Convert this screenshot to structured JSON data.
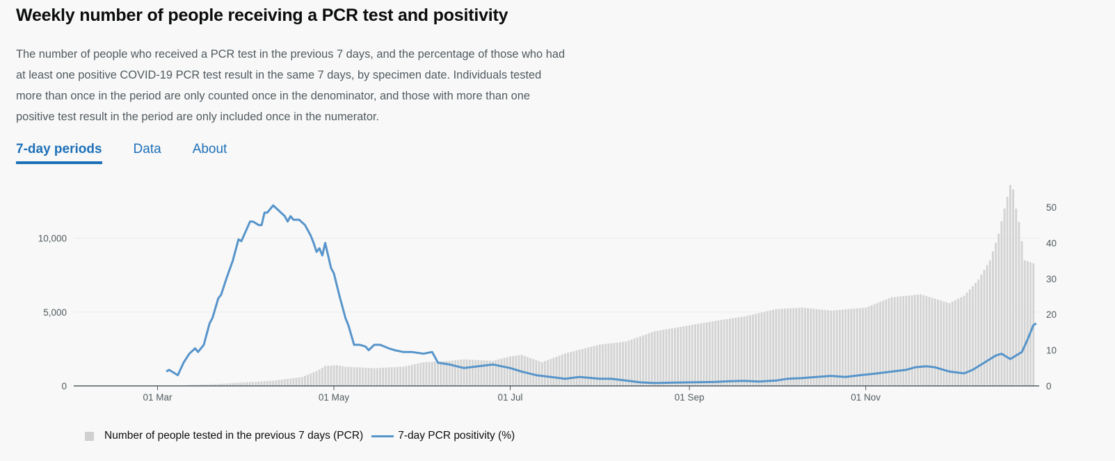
{
  "header": {
    "title": "Weekly number of people receiving a PCR test and positivity",
    "description": "The number of people who received a PCR test in the previous 7 days, and the percentage of those who had at least one positive COVID-19 PCR test result in the same 7 days, by specimen date. Individuals tested more than once in the period are only counted once in the denominator, and those with more than one positive test result in the period are only included once in the numerator."
  },
  "tabs": [
    {
      "label": "7-day periods",
      "active": true
    },
    {
      "label": "Data",
      "active": false
    },
    {
      "label": "About",
      "active": false
    }
  ],
  "colors": {
    "bars": "#d3d3d3",
    "line": "#5694ca",
    "tab": "#1d70b8"
  },
  "chart_data": {
    "type": "bar",
    "x_range": [
      "2020-02-01",
      "2020-12-31"
    ],
    "x_ticks": [
      {
        "date": "2020-03-01",
        "label": "01 Mar"
      },
      {
        "date": "2020-05-01",
        "label": "01 May"
      },
      {
        "date": "2020-07-01",
        "label": "01 Jul"
      },
      {
        "date": "2020-09-01",
        "label": "01 Sep"
      },
      {
        "date": "2020-11-01",
        "label": "01 Nov"
      }
    ],
    "y_left": {
      "range": [
        0,
        13650
      ],
      "ticks": [
        0,
        5000,
        10000
      ],
      "tick_labels": [
        "0",
        "5,000",
        "10,000"
      ]
    },
    "y_right": {
      "range": [
        0,
        50
      ],
      "ticks": [
        0,
        10,
        20,
        30,
        40,
        50
      ],
      "tick_labels": [
        "0",
        "10",
        "20",
        "30",
        "40",
        "50"
      ]
    },
    "grid": true,
    "legend_position": "bottom-left",
    "series": [
      {
        "name": "Number of people tested in the previous 7 days (PCR)",
        "type": "bar",
        "axis": "left",
        "points": [
          [
            "2020-03-10",
            50
          ],
          [
            "2020-03-20",
            110
          ],
          [
            "2020-04-01",
            250
          ],
          [
            "2020-04-10",
            350
          ],
          [
            "2020-04-20",
            600
          ],
          [
            "2020-04-25",
            1000
          ],
          [
            "2020-04-28",
            1350
          ],
          [
            "2020-05-02",
            1400
          ],
          [
            "2020-05-05",
            1300
          ],
          [
            "2020-05-15",
            1200
          ],
          [
            "2020-05-25",
            1300
          ],
          [
            "2020-06-01",
            1600
          ],
          [
            "2020-06-10",
            1700
          ],
          [
            "2020-06-15",
            1800
          ],
          [
            "2020-06-25",
            1700
          ],
          [
            "2020-07-01",
            2000
          ],
          [
            "2020-07-05",
            2100
          ],
          [
            "2020-07-12",
            1600
          ],
          [
            "2020-07-20",
            2200
          ],
          [
            "2020-08-01",
            2800
          ],
          [
            "2020-08-10",
            3000
          ],
          [
            "2020-08-20",
            3700
          ],
          [
            "2020-09-01",
            4100
          ],
          [
            "2020-09-10",
            4400
          ],
          [
            "2020-09-20",
            4700
          ],
          [
            "2020-10-01",
            5200
          ],
          [
            "2020-10-10",
            5300
          ],
          [
            "2020-10-20",
            5100
          ],
          [
            "2020-11-01",
            5300
          ],
          [
            "2020-11-10",
            6000
          ],
          [
            "2020-11-20",
            6200
          ],
          [
            "2020-11-30",
            5600
          ],
          [
            "2020-12-05",
            6100
          ],
          [
            "2020-12-10",
            7200
          ],
          [
            "2020-12-14",
            8500
          ],
          [
            "2020-12-17",
            10300
          ],
          [
            "2020-12-19",
            12000
          ],
          [
            "2020-12-20",
            12800
          ],
          [
            "2020-12-21",
            13600
          ],
          [
            "2020-12-22",
            13300
          ],
          [
            "2020-12-23",
            12000
          ],
          [
            "2020-12-24",
            11100
          ],
          [
            "2020-12-26",
            8500
          ],
          [
            "2020-12-29",
            8300
          ]
        ]
      },
      {
        "name": "7-day PCR positivity (%)",
        "type": "line",
        "axis": "right",
        "points": [
          [
            "2020-03-04",
            4
          ],
          [
            "2020-03-05",
            4.5
          ],
          [
            "2020-03-07",
            3.5
          ],
          [
            "2020-03-08",
            3
          ],
          [
            "2020-03-10",
            6.5
          ],
          [
            "2020-03-12",
            9
          ],
          [
            "2020-03-14",
            10.5
          ],
          [
            "2020-03-15",
            9.5
          ],
          [
            "2020-03-17",
            11.5
          ],
          [
            "2020-03-19",
            17.5
          ],
          [
            "2020-03-20",
            19
          ],
          [
            "2020-03-22",
            24.5
          ],
          [
            "2020-03-23",
            25.5
          ],
          [
            "2020-03-25",
            30.5
          ],
          [
            "2020-03-27",
            35
          ],
          [
            "2020-03-29",
            41
          ],
          [
            "2020-03-30",
            40.5
          ],
          [
            "2020-04-02",
            46
          ],
          [
            "2020-04-03",
            46
          ],
          [
            "2020-04-05",
            45
          ],
          [
            "2020-04-06",
            45
          ],
          [
            "2020-04-07",
            48.5
          ],
          [
            "2020-04-08",
            48.5
          ],
          [
            "2020-04-10",
            50.5
          ],
          [
            "2020-04-12",
            49
          ],
          [
            "2020-04-14",
            47.5
          ],
          [
            "2020-04-15",
            46
          ],
          [
            "2020-04-16",
            47.5
          ],
          [
            "2020-04-17",
            46.5
          ],
          [
            "2020-04-19",
            46.5
          ],
          [
            "2020-04-21",
            45
          ],
          [
            "2020-04-23",
            42
          ],
          [
            "2020-04-24",
            40
          ],
          [
            "2020-04-25",
            37.5
          ],
          [
            "2020-04-26",
            38.5
          ],
          [
            "2020-04-27",
            36.5
          ],
          [
            "2020-04-28",
            40
          ],
          [
            "2020-04-30",
            33
          ],
          [
            "2020-05-01",
            31.5
          ],
          [
            "2020-05-03",
            25
          ],
          [
            "2020-05-04",
            22
          ],
          [
            "2020-05-05",
            19
          ],
          [
            "2020-05-06",
            17
          ],
          [
            "2020-05-08",
            11.5
          ],
          [
            "2020-05-10",
            11.5
          ],
          [
            "2020-05-12",
            11
          ],
          [
            "2020-05-13",
            10
          ],
          [
            "2020-05-15",
            11.5
          ],
          [
            "2020-05-17",
            11.5
          ],
          [
            "2020-05-20",
            10.5
          ],
          [
            "2020-05-22",
            10
          ],
          [
            "2020-05-25",
            9.5
          ],
          [
            "2020-05-28",
            9.5
          ],
          [
            "2020-06-01",
            9
          ],
          [
            "2020-06-04",
            9.5
          ],
          [
            "2020-06-06",
            6.5
          ],
          [
            "2020-06-10",
            6
          ],
          [
            "2020-06-15",
            5
          ],
          [
            "2020-06-20",
            5.5
          ],
          [
            "2020-06-25",
            6
          ],
          [
            "2020-07-01",
            5
          ],
          [
            "2020-07-05",
            4
          ],
          [
            "2020-07-10",
            3
          ],
          [
            "2020-07-15",
            2.5
          ],
          [
            "2020-07-20",
            2
          ],
          [
            "2020-07-25",
            2.5
          ],
          [
            "2020-08-01",
            2
          ],
          [
            "2020-08-05",
            2
          ],
          [
            "2020-08-10",
            1.5
          ],
          [
            "2020-08-15",
            1
          ],
          [
            "2020-08-20",
            0.8
          ],
          [
            "2020-08-25",
            0.9
          ],
          [
            "2020-09-01",
            1
          ],
          [
            "2020-09-10",
            1.1
          ],
          [
            "2020-09-15",
            1.3
          ],
          [
            "2020-09-20",
            1.4
          ],
          [
            "2020-09-25",
            1.2
          ],
          [
            "2020-10-01",
            1.5
          ],
          [
            "2020-10-05",
            2
          ],
          [
            "2020-10-10",
            2.2
          ],
          [
            "2020-10-15",
            2.5
          ],
          [
            "2020-10-20",
            2.8
          ],
          [
            "2020-10-25",
            2.5
          ],
          [
            "2020-10-30",
            3
          ],
          [
            "2020-11-05",
            3.5
          ],
          [
            "2020-11-10",
            4
          ],
          [
            "2020-11-15",
            4.5
          ],
          [
            "2020-11-18",
            5.2
          ],
          [
            "2020-11-22",
            5.5
          ],
          [
            "2020-11-25",
            5.2
          ],
          [
            "2020-11-30",
            4
          ],
          [
            "2020-12-05",
            3.5
          ],
          [
            "2020-12-08",
            4.5
          ],
          [
            "2020-12-12",
            6.5
          ],
          [
            "2020-12-14",
            7.5
          ],
          [
            "2020-12-16",
            8.5
          ],
          [
            "2020-12-18",
            9
          ],
          [
            "2020-12-20",
            8
          ],
          [
            "2020-12-21",
            7.5
          ],
          [
            "2020-12-23",
            8.5
          ],
          [
            "2020-12-25",
            9.5
          ],
          [
            "2020-12-27",
            13
          ],
          [
            "2020-12-29",
            17
          ],
          [
            "2020-12-30",
            17.5
          ]
        ]
      }
    ]
  }
}
